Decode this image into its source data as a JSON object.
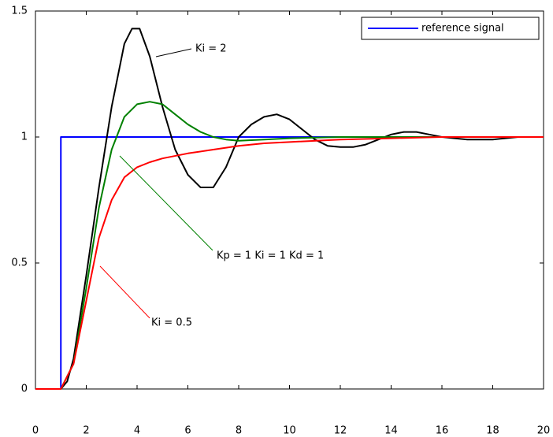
{
  "chart_data": {
    "type": "line",
    "xlim": [
      0,
      20
    ],
    "xticks": [
      0,
      2,
      4,
      6,
      8,
      10,
      12,
      14,
      16,
      18,
      20
    ],
    "ylim": [
      0,
      1.5
    ],
    "yticks": [
      0,
      0.5,
      1,
      1.5
    ],
    "grid": false,
    "legend": "upper right",
    "series": [
      {
        "name": "reference signal",
        "color": "#0000ff",
        "x": [
          0,
          1,
          1,
          20
        ],
        "values": [
          0,
          0,
          1,
          1
        ]
      },
      {
        "color": "#000000",
        "x": [
          0,
          1,
          1.25,
          1.5,
          2,
          2.5,
          3,
          3.5,
          3.8,
          4.1,
          4.5,
          5,
          5.5,
          6,
          6.5,
          7,
          7.5,
          8,
          8.5,
          9,
          9.5,
          10,
          10.5,
          11,
          11.5,
          12,
          12.5,
          13,
          13.5,
          14,
          14.5,
          15,
          15.5,
          16,
          17,
          18,
          19,
          20
        ],
        "values": [
          0,
          0,
          0.03,
          0.12,
          0.45,
          0.8,
          1.12,
          1.37,
          1.43,
          1.43,
          1.32,
          1.12,
          0.95,
          0.85,
          0.8,
          0.8,
          0.88,
          1.0,
          1.05,
          1.08,
          1.09,
          1.07,
          1.03,
          0.99,
          0.965,
          0.96,
          0.96,
          0.97,
          0.99,
          1.01,
          1.02,
          1.02,
          1.01,
          1.0,
          0.99,
          0.99,
          1.0,
          1.0
        ]
      },
      {
        "color": "#008000",
        "x": [
          0,
          1,
          1.5,
          2,
          2.5,
          3,
          3.5,
          4,
          4.5,
          5,
          5.5,
          6,
          6.5,
          7,
          7.5,
          8,
          9,
          10,
          12,
          14,
          16,
          18,
          20
        ],
        "values": [
          0,
          0,
          0.1,
          0.4,
          0.72,
          0.95,
          1.08,
          1.13,
          1.14,
          1.13,
          1.09,
          1.05,
          1.02,
          1.0,
          0.99,
          0.985,
          0.99,
          0.995,
          1.0,
          1.0,
          1.0,
          1.0,
          1.0
        ]
      },
      {
        "color": "#ff0000",
        "x": [
          0,
          1,
          1.5,
          2,
          2.5,
          3,
          3.5,
          4,
          4.5,
          5,
          6,
          7,
          8,
          9,
          10,
          12,
          14,
          16,
          18,
          20
        ],
        "values": [
          0,
          0,
          0.1,
          0.35,
          0.6,
          0.75,
          0.84,
          0.88,
          0.9,
          0.915,
          0.935,
          0.95,
          0.965,
          0.975,
          0.98,
          0.99,
          0.995,
          1.0,
          1.0,
          1.0
        ]
      }
    ],
    "annotations": [
      "Ki = 2",
      "Kp = 1  Ki = 1  Kd = 1",
      "Ki = 0.5"
    ]
  }
}
